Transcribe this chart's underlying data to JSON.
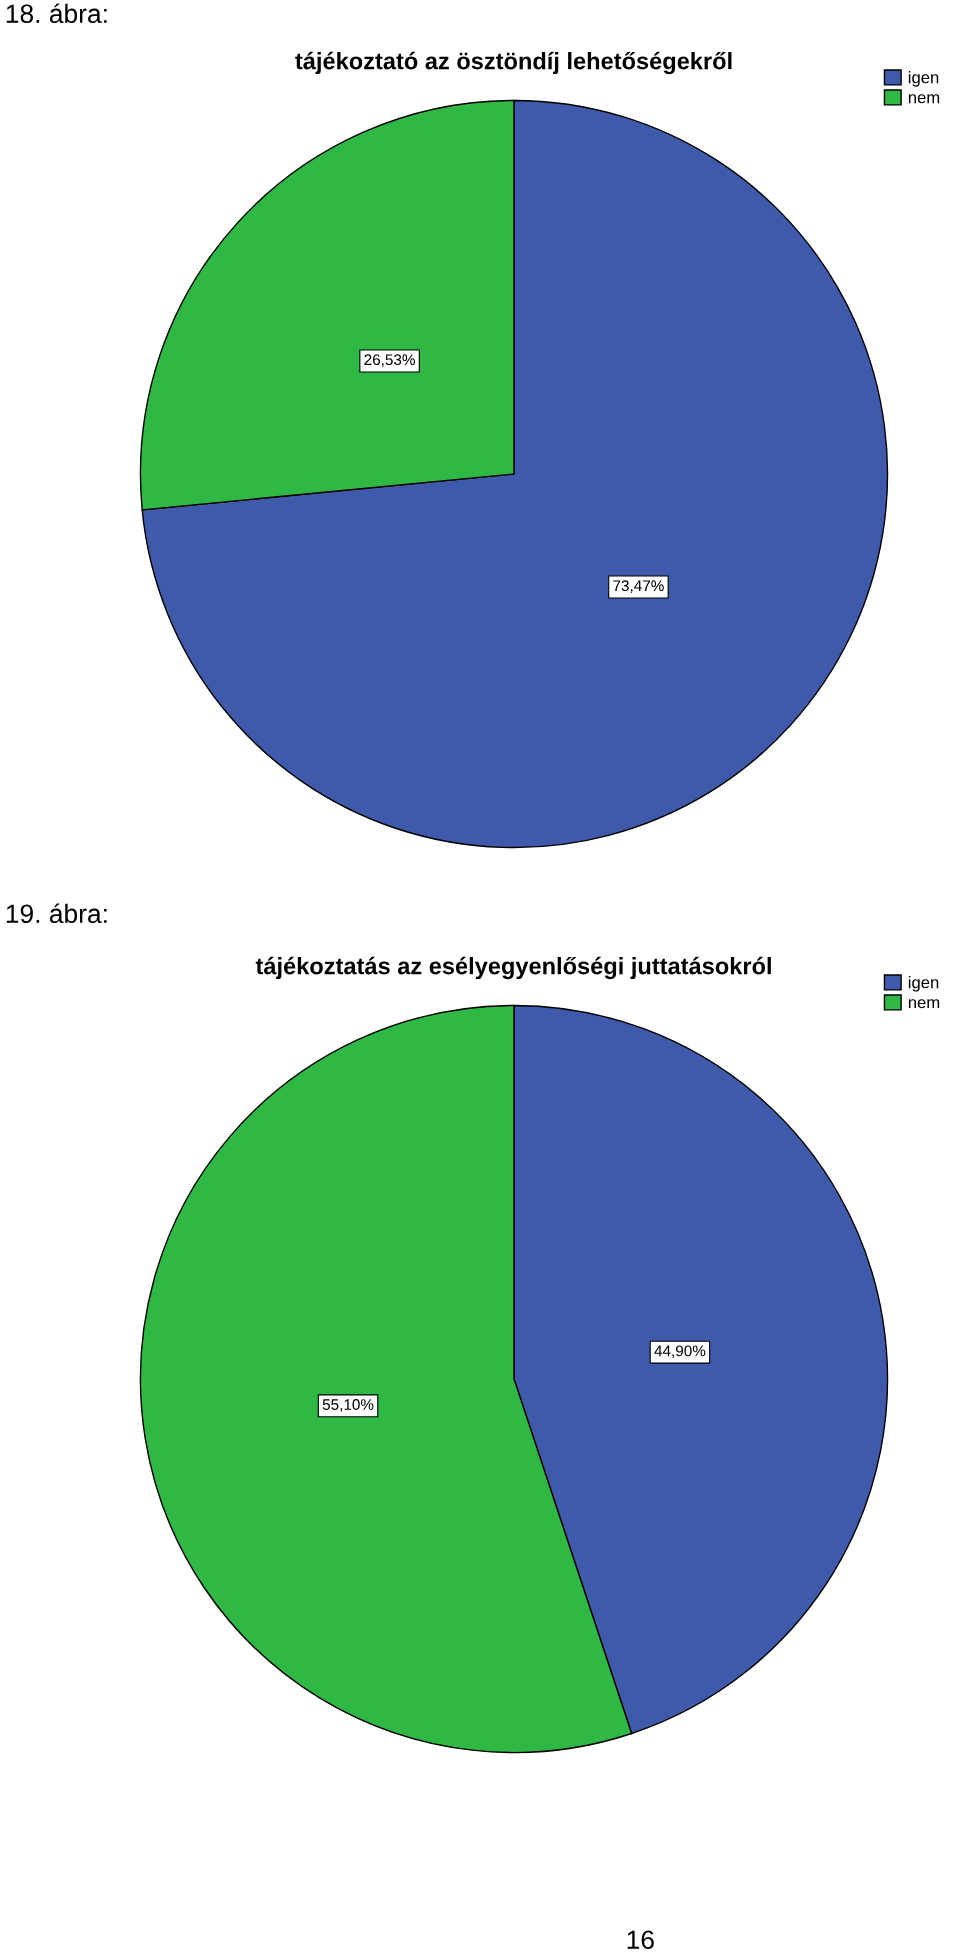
{
  "chart_data": [
    {
      "type": "pie",
      "title": "tájékoztató az ösztöndíj lehetőségekről",
      "categories": [
        "igen",
        "nem"
      ],
      "values": [
        73.47,
        26.53
      ],
      "colors": [
        "#3f5aaa",
        "#2fb844"
      ],
      "value_labels": [
        "73,47%",
        "26,53%"
      ],
      "legend": "top right",
      "annotations": [
        "18. ábra:"
      ]
    },
    {
      "type": "pie",
      "title": "tájékoztatás az esélyegyenlőségi juttatásokról",
      "categories": [
        "igen",
        "nem"
      ],
      "values": [
        44.9,
        55.1
      ],
      "colors": [
        "#3f5aaa",
        "#2fb844"
      ],
      "value_labels": [
        "44,90%",
        "55,10%"
      ],
      "legend": "top right",
      "annotations": [
        "19. ábra:",
        "16"
      ]
    }
  ]
}
